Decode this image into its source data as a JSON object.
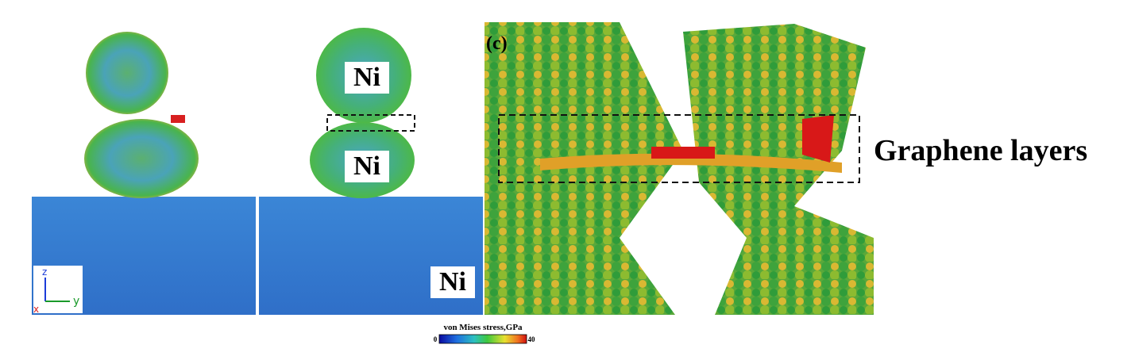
{
  "panel_b_labels": [
    "Ni",
    "Ni",
    "Ni"
  ],
  "panel_c_label": "(c)",
  "annotation": "Graphene layers",
  "axes_triad": {
    "z": "z",
    "y": "y",
    "x": "x"
  },
  "colorbar": {
    "title": "von Mises stress,GPa",
    "min": 0,
    "max": 40
  }
}
